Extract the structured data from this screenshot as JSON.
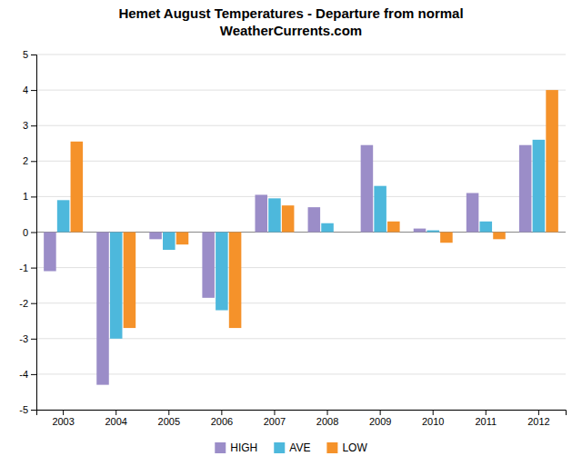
{
  "chart_data": {
    "type": "bar",
    "title": "Hemet August Temperatures - Departure from normal",
    "subtitle": "WeatherCurrents.com",
    "categories": [
      "2003",
      "2004",
      "2005",
      "2006",
      "2007",
      "2008",
      "2009",
      "2010",
      "2011",
      "2012"
    ],
    "series": [
      {
        "name": "HIGH",
        "color": "#9B8DC8",
        "values": [
          -1.1,
          -4.3,
          -0.2,
          -1.85,
          1.05,
          0.7,
          2.45,
          0.1,
          1.1,
          2.45
        ]
      },
      {
        "name": "AVE",
        "color": "#4DB8DC",
        "values": [
          0.9,
          -3.0,
          -0.5,
          -2.2,
          0.95,
          0.25,
          1.3,
          0.05,
          0.3,
          2.6
        ]
      },
      {
        "name": "LOW",
        "color": "#F5922A",
        "values": [
          2.55,
          -2.7,
          -0.35,
          -2.7,
          0.75,
          0.0,
          0.3,
          -0.3,
          -0.2,
          4.0
        ]
      }
    ],
    "ylim": [
      -5,
      5
    ],
    "yticks": [
      -5,
      -4,
      -3,
      -2,
      -1,
      0,
      1,
      2,
      3,
      4,
      5
    ],
    "grid": true,
    "legend": "bottom"
  }
}
